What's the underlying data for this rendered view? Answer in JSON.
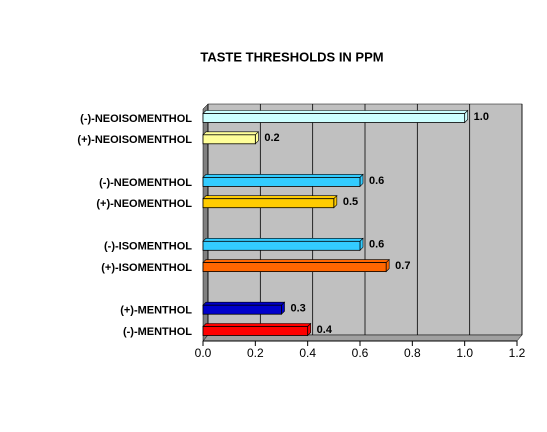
{
  "chart_data": {
    "type": "bar",
    "orientation": "horizontal",
    "title": "TASTE THRESHOLDS IN PPM",
    "categories": [
      "(-)-NEOISOMENTHOL",
      "(+)-NEOISOMENTHOL",
      "(-)-NEOMENTHOL",
      "(+)-NEOMENTHOL",
      "(-)-ISOMENTHOL",
      "(+)-ISOMENTHOL",
      "(+)-MENTHOL",
      "(-)-MENTHOL"
    ],
    "values": [
      1,
      0.2,
      0.6,
      0.5,
      0.6,
      0.7,
      0.3,
      0.4
    ],
    "value_labels": [
      "1.0",
      "0.2",
      "0.6",
      "0.5",
      "0.6",
      "0.7",
      "0.3",
      "0.4"
    ],
    "colors": [
      "#ccffff",
      "#ffff99",
      "#33ccff",
      "#ffcc00",
      "#33ccff",
      "#ff6600",
      "#0000cc",
      "#ff0000"
    ],
    "xlim": [
      0,
      1.2
    ],
    "xticks": [
      {
        "value": 0,
        "label": "0.0"
      },
      0.2,
      0.4,
      0.6,
      0.8,
      {
        "value": 1,
        "label": "1.0"
      },
      1.2
    ],
    "grid": true
  }
}
